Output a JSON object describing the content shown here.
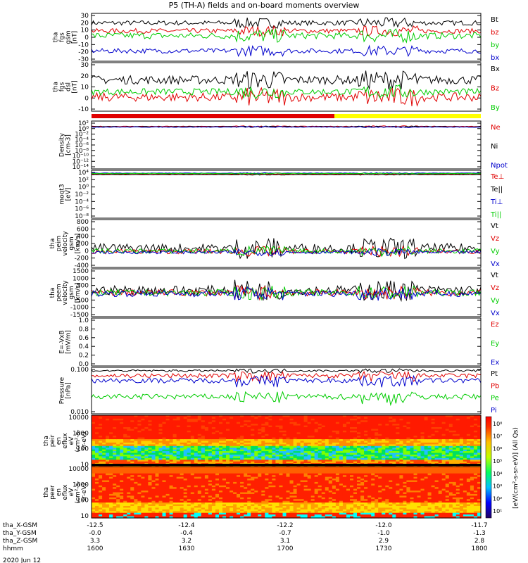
{
  "title": "P5 (TH-A) fields and on-board moments overview",
  "colors": {
    "black": "#000000",
    "red": "#e00000",
    "green": "#00cc00",
    "blue": "#0000cc",
    "yellow": "#ffff00"
  },
  "chart_data": [
    {
      "type": "line",
      "id": "fgs_b",
      "ylabel_lines": [
        "tha",
        "fgs",
        "gsm",
        "[nT]"
      ],
      "yticks": [
        "30",
        "20",
        "10",
        "0",
        "-10",
        "-20",
        "-30"
      ],
      "ylim": [
        -30,
        30
      ],
      "series": [
        {
          "name": "Bt",
          "color": "black",
          "base": 18,
          "amp": 3
        },
        {
          "name": "bz",
          "color": "red",
          "base": 8,
          "amp": 3
        },
        {
          "name": "by",
          "color": "green",
          "base": 2,
          "amp": 4
        },
        {
          "name": "bx",
          "color": "blue",
          "base": -17,
          "amp": 3
        }
      ]
    },
    {
      "type": "line",
      "id": "fgs_dsl",
      "ylabel_lines": [
        "tha",
        "fgs",
        "dsl",
        "[nT]"
      ],
      "yticks": [
        "30",
        "20",
        "10",
        "0",
        "-10"
      ],
      "ylim": [
        -15,
        30
      ],
      "series": [
        {
          "name": "Bx",
          "color": "black",
          "base": 14,
          "amp": 4
        },
        {
          "name": "Bz",
          "color": "red",
          "base": -2,
          "amp": 4
        },
        {
          "name": "By",
          "color": "green",
          "base": 3,
          "amp": 3
        }
      ]
    },
    {
      "type": "line",
      "id": "density",
      "ylabel_lines": [
        "Density",
        "[cm-3]"
      ],
      "yticks": [
        "10²",
        "10⁰",
        "10⁻²",
        "10⁻⁴",
        "10⁻⁶",
        "10⁻⁸",
        "10⁻¹⁰",
        "10⁻¹²",
        "10⁻¹⁴"
      ],
      "ylim": [
        -14,
        2
      ],
      "series": [
        {
          "name": "Ne",
          "color": "red",
          "base": 0.2,
          "amp": 0.1
        },
        {
          "name": "Ni",
          "color": "black",
          "base": 0.1,
          "amp": 0.1
        },
        {
          "name": "Npot",
          "color": "blue",
          "base": 0.0,
          "amp": 0.1
        }
      ]
    },
    {
      "type": "line",
      "id": "temperature",
      "ylabel_lines": [
        "moqt3",
        "[eV]"
      ],
      "yticks": [
        "10⁴",
        "10²",
        "10⁰",
        "10⁻²",
        "10⁻⁴",
        "10⁻⁶",
        "10⁻⁸"
      ],
      "ylim": [
        -8,
        4
      ],
      "series": [
        {
          "name": "Te⊥",
          "color": "red",
          "base": 3.0,
          "amp": 0.05
        },
        {
          "name": "Te||",
          "color": "black",
          "base": 2.9,
          "amp": 0.05
        },
        {
          "name": "Ti⊥",
          "color": "blue",
          "base": 3.3,
          "amp": 0.05
        },
        {
          "name": "Ti||",
          "color": "green",
          "base": 3.2,
          "amp": 0.05
        }
      ]
    },
    {
      "type": "line",
      "id": "peim_velocity",
      "ylabel_lines": [
        "tha",
        "peim",
        "velocity",
        "gsm",
        "[km/s]"
      ],
      "yticks": [
        "800",
        "600",
        "400",
        "200",
        "0",
        "-200",
        "-400"
      ],
      "ylim": [
        -400,
        800
      ],
      "series": [
        {
          "name": "Vt",
          "color": "black",
          "base": 80,
          "amp": 120
        },
        {
          "name": "Vz",
          "color": "red",
          "base": 0,
          "amp": 60
        },
        {
          "name": "Vy",
          "color": "green",
          "base": 10,
          "amp": 60
        },
        {
          "name": "Vx",
          "color": "blue",
          "base": -20,
          "amp": 40
        }
      ]
    },
    {
      "type": "line",
      "id": "peem_velocity",
      "ylabel_lines": [
        "tha",
        "peem",
        "velocity",
        "gsm",
        "[km/s]"
      ],
      "yticks": [
        "1500",
        "1000",
        "500",
        "0",
        "-500",
        "-1000",
        "-1500"
      ],
      "ylim": [
        -1500,
        1500
      ],
      "series": [
        {
          "name": "Vt",
          "color": "black",
          "base": 150,
          "amp": 300
        },
        {
          "name": "Vz",
          "color": "red",
          "base": 0,
          "amp": 200
        },
        {
          "name": "Vy",
          "color": "green",
          "base": 0,
          "amp": 200
        },
        {
          "name": "Vx",
          "color": "blue",
          "base": -50,
          "amp": 200
        }
      ]
    },
    {
      "type": "line",
      "id": "efield",
      "ylabel_lines": [
        "E=-VxB",
        "[mV/m]"
      ],
      "yticks": [
        "1.0",
        "0.8",
        "0.6",
        "0.4",
        "0.2",
        "0.0"
      ],
      "ylim": [
        0,
        1
      ],
      "series": [
        {
          "name": "Ez",
          "color": "red"
        },
        {
          "name": "Ey",
          "color": "green"
        },
        {
          "name": "Ex",
          "color": "blue"
        }
      ]
    },
    {
      "type": "line",
      "id": "pressure",
      "ylabel_lines": [
        "Pressure",
        "[nPa]"
      ],
      "yticks": [
        "0.100",
        "0.010"
      ],
      "ylim": [
        0.004,
        0.3
      ],
      "series": [
        {
          "name": "Pt",
          "color": "black",
          "base": 0.22,
          "amp": 0.02
        },
        {
          "name": "Pb",
          "color": "red",
          "base": 0.14,
          "amp": 0.03
        },
        {
          "name": "Pe",
          "color": "green",
          "base": 0.02,
          "amp": 0.005
        },
        {
          "name": "Pi",
          "color": "blue",
          "base": 0.09,
          "amp": 0.02
        }
      ]
    },
    {
      "type": "heatmap",
      "id": "peir",
      "ylabel_lines": [
        "tha",
        "peir",
        "en",
        "eflux",
        "eV",
        "(cm²-s-",
        "sr-eV)"
      ],
      "yticks": [
        "10000",
        "1000",
        "100",
        "10"
      ],
      "ylim": [
        5,
        15000
      ]
    },
    {
      "type": "heatmap",
      "id": "peer",
      "ylabel_lines": [
        "tha",
        "peer",
        "en",
        "eflux",
        "eV",
        "(cm²-s-",
        "sr-eV)"
      ],
      "yticks": [
        "10000",
        "1000",
        "100",
        "10"
      ],
      "ylim": [
        5,
        15000
      ]
    }
  ],
  "colorbar": {
    "labels": [
      "10⁸",
      "10⁷",
      "10⁶",
      "10⁵",
      "10⁴",
      "10³",
      "10²",
      "10¹"
    ],
    "title": "[eV/(cm²-s-sr-eV)] (All Qs)"
  },
  "xaxis": {
    "rows": [
      {
        "label": "tha_X-GSM",
        "values": [
          "-12.5",
          "-12.4",
          "-12.2",
          "-12.0",
          "-11.7"
        ]
      },
      {
        "label": "tha_Y-GSM",
        "values": [
          "-0.0",
          "-0.4",
          "-0.7",
          "-1.0",
          "-1.3"
        ]
      },
      {
        "label": "tha_Z-GSM",
        "values": [
          "3.3",
          "3.2",
          "3.1",
          "2.9",
          "2.8"
        ]
      },
      {
        "label": "hhmm",
        "values": [
          "1600",
          "1630",
          "1700",
          "1730",
          "1800"
        ]
      }
    ],
    "date": "2020 Jun 12"
  }
}
